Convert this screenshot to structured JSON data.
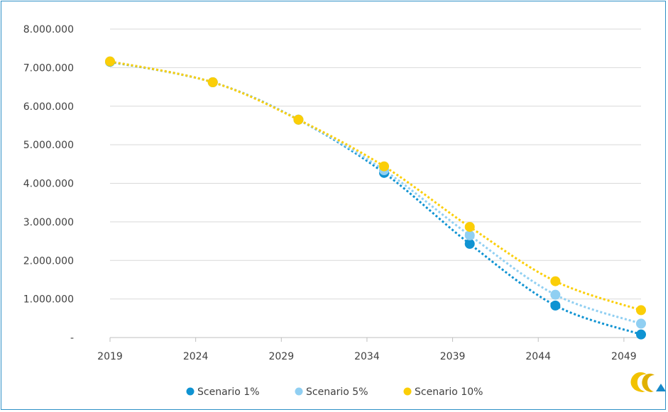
{
  "chart_data": {
    "type": "scatter",
    "title": "",
    "xlabel": "",
    "ylabel": "",
    "x_ticks": [
      "2019",
      "2024",
      "2029",
      "2034",
      "2039",
      "2044",
      "2049"
    ],
    "y_ticks": [
      "8.000.000",
      "7.000.000",
      "6.000.000",
      "5.000.000",
      "4.000.000",
      "3.000.000",
      "2.000.000",
      "1.000.000",
      "-"
    ],
    "xlim": [
      2019,
      2050
    ],
    "ylim": [
      0,
      8000000
    ],
    "grid": "horizontal",
    "trendline": "dotted",
    "legend_position": "bottom",
    "series": [
      {
        "name": "Scenario 1%",
        "color": "#0f93d2",
        "x": [
          2019,
          2025,
          2030,
          2035,
          2040,
          2045,
          2050
        ],
        "values": [
          7150000,
          6620000,
          5650000,
          4270000,
          2430000,
          830000,
          80000
        ]
      },
      {
        "name": "Scenario 5%",
        "color": "#90cff2",
        "x": [
          2019,
          2025,
          2030,
          2035,
          2040,
          2045,
          2050
        ],
        "values": [
          7160000,
          6620000,
          5650000,
          4340000,
          2650000,
          1110000,
          360000
        ]
      },
      {
        "name": "Scenario 10%",
        "color": "#fbce07",
        "x": [
          2019,
          2025,
          2030,
          2035,
          2040,
          2045,
          2050
        ],
        "values": [
          7160000,
          6620000,
          5650000,
          4440000,
          2870000,
          1460000,
          710000
        ]
      }
    ]
  },
  "logo": {
    "name": "brand-logo-icon",
    "color_gold": "#f2c200",
    "color_blue": "#1689c9"
  }
}
